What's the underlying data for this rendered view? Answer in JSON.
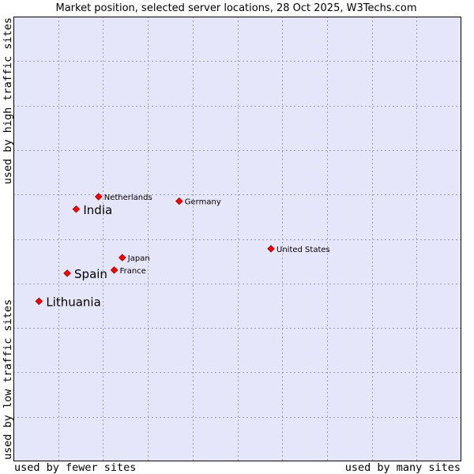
{
  "chart_data": {
    "type": "scatter",
    "title": "Market position, selected server locations, 28 Oct 2025, W3Techs.com",
    "xlabel_left": "used by fewer sites",
    "xlabel_right": "used by many sites",
    "ylabel_bottom": "used by low traffic sites",
    "ylabel_top": "used by high traffic sites",
    "xlim": [
      0,
      10
    ],
    "ylim": [
      0,
      10
    ],
    "grid": true,
    "point_color": "#ff0000",
    "plot_bg": "#e6e6fa",
    "grid_color": "#9999bb",
    "points": [
      {
        "name": "Netherlands",
        "x": 1.9,
        "y": 5.95,
        "highlight": false
      },
      {
        "name": "India",
        "x": 1.4,
        "y": 5.67,
        "highlight": true
      },
      {
        "name": "Germany",
        "x": 3.7,
        "y": 5.85,
        "highlight": false
      },
      {
        "name": "United States",
        "x": 5.75,
        "y": 4.78,
        "highlight": false
      },
      {
        "name": "Japan",
        "x": 2.43,
        "y": 4.58,
        "highlight": false
      },
      {
        "name": "France",
        "x": 2.25,
        "y": 4.3,
        "highlight": false
      },
      {
        "name": "Spain",
        "x": 1.2,
        "y": 4.23,
        "highlight": true
      },
      {
        "name": "Lithuania",
        "x": 0.57,
        "y": 3.6,
        "highlight": true
      }
    ]
  }
}
